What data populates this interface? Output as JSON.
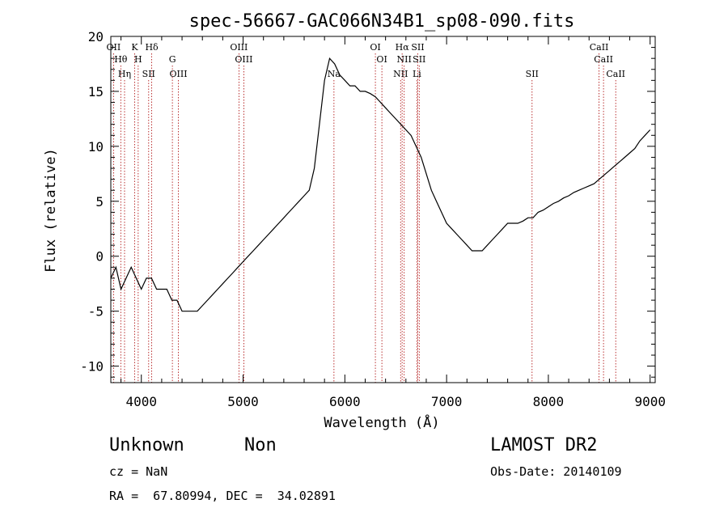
{
  "chart_data": {
    "type": "line",
    "title": "spec-56667-GAC066N34B1_sp08-090.fits",
    "xlabel": "Wavelength (Å)",
    "ylabel": "Flux (relative)",
    "xlim": [
      3700,
      9050
    ],
    "ylim": [
      -11.5,
      20
    ],
    "x_ticks": [
      4000,
      5000,
      6000,
      7000,
      8000,
      9000
    ],
    "y_ticks": [
      -10,
      -5,
      0,
      5,
      10,
      15,
      20
    ],
    "grid": false,
    "legend": "none",
    "line_color": "#000000",
    "marker_color": "#aa0000",
    "series": [
      {
        "x": [
          3700,
          3750,
          3800,
          3850,
          3900,
          3950,
          4000,
          4050,
          4100,
          4150,
          4200,
          4250,
          4300,
          4350,
          4400,
          4450,
          4500,
          4550,
          4600,
          4650,
          4700,
          4750,
          4800,
          4850,
          4900,
          4950,
          5000,
          5050,
          5100,
          5150,
          5200,
          5250,
          5300,
          5350,
          5400,
          5450,
          5500,
          5550,
          5600,
          5650,
          5700,
          5750,
          5800,
          5850,
          5900,
          5950,
          6000,
          6050,
          6100,
          6150,
          6200,
          6250,
          6300,
          6350,
          6400,
          6450,
          6500,
          6550,
          6600,
          6650,
          6700,
          6750,
          6800,
          6850,
          6900,
          6950,
          7000,
          7050,
          7100,
          7150,
          7200,
          7250,
          7300,
          7350,
          7400,
          7450,
          7500,
          7550,
          7600,
          7650,
          7700,
          7750,
          7800,
          7850,
          7900,
          7950,
          8000,
          8050,
          8100,
          8150,
          8200,
          8250,
          8300,
          8350,
          8400,
          8450,
          8500,
          8550,
          8600,
          8650,
          8700,
          8750,
          8800,
          8850,
          8900,
          8950,
          9000
        ],
        "y": [
          -2,
          -1,
          -3,
          -2,
          -1,
          -2,
          -3,
          -2,
          -2,
          -3,
          -3,
          -3,
          -4,
          -4,
          -5,
          -5,
          -5,
          -5,
          -4.5,
          -4,
          -3.5,
          -3,
          -2.5,
          -2,
          -1.5,
          -1,
          -0.5,
          0,
          0.5,
          1,
          1.5,
          2,
          2.5,
          3,
          3.5,
          4,
          4.5,
          5,
          5.5,
          6,
          8,
          12,
          16,
          18,
          17.5,
          16.5,
          16,
          15.5,
          15.5,
          15,
          15,
          14.8,
          14.5,
          14,
          13.5,
          13,
          12.5,
          12,
          11.5,
          11,
          10,
          9,
          7.5,
          6,
          5,
          4,
          3,
          2.5,
          2,
          1.5,
          1,
          0.5,
          0.5,
          0.5,
          1,
          1.5,
          2,
          2.5,
          3,
          3,
          3,
          3.2,
          3.5,
          3.5,
          4,
          4.2,
          4.5,
          4.8,
          5,
          5.3,
          5.5,
          5.8,
          6,
          6.2,
          6.4,
          6.6,
          7,
          7.4,
          7.8,
          8.2,
          8.6,
          9,
          9.4,
          9.8,
          10.5,
          11,
          11.5
        ]
      }
    ],
    "lines": [
      {
        "label": "OII",
        "wavelength": 3727
      },
      {
        "label": "Hθ",
        "wavelength": 3798
      },
      {
        "label": "Hη",
        "wavelength": 3835
      },
      {
        "label": "K",
        "wavelength": 3934
      },
      {
        "label": "H",
        "wavelength": 3969
      },
      {
        "label": "SII",
        "wavelength": 4072
      },
      {
        "label": "Hδ",
        "wavelength": 4102
      },
      {
        "label": "G",
        "wavelength": 4305
      },
      {
        "label": "OIII",
        "wavelength": 4364
      },
      {
        "label": "OIII",
        "wavelength": 4959
      },
      {
        "label": "OIII",
        "wavelength": 5007
      },
      {
        "label": "Na",
        "wavelength": 5893
      },
      {
        "label": "OI",
        "wavelength": 6300
      },
      {
        "label": "OI",
        "wavelength": 6364
      },
      {
        "label": "NII",
        "wavelength": 6548
      },
      {
        "label": "Hα",
        "wavelength": 6563
      },
      {
        "label": "NII",
        "wavelength": 6583
      },
      {
        "label": "Li",
        "wavelength": 6708
      },
      {
        "label": "SII",
        "wavelength": 6717
      },
      {
        "label": "SII",
        "wavelength": 6731
      },
      {
        "label": "SII",
        "wavelength": 7840
      },
      {
        "label": "CaII",
        "wavelength": 8498
      },
      {
        "label": "CaII",
        "wavelength": 8542
      },
      {
        "label": "CaII",
        "wavelength": 8662
      }
    ]
  },
  "info": {
    "object_class": "Unknown",
    "object_subclass": "Non",
    "cz": "cz = NaN",
    "coords": "RA =  67.80994, DEC =  34.02891",
    "survey": "LAMOST DR2",
    "obs_date": "Obs-Date: 20140109"
  }
}
